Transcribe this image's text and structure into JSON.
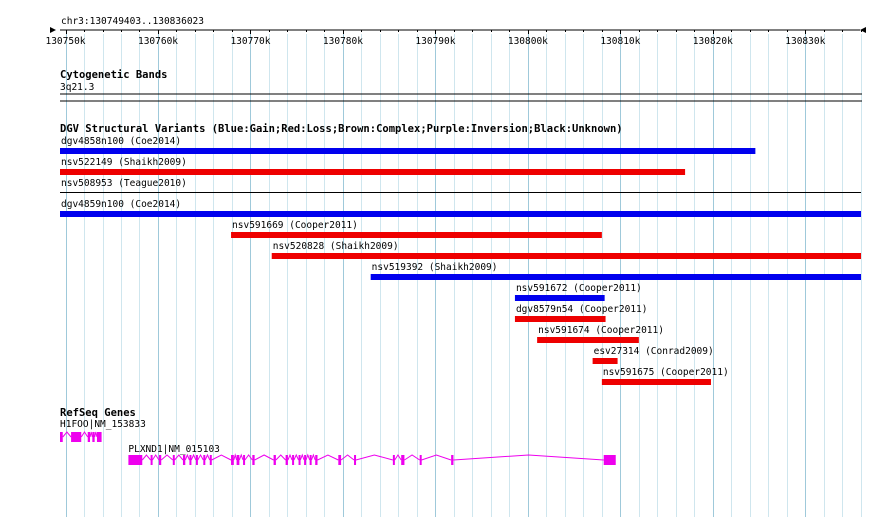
{
  "region": {
    "label": "chr3:130749403..130836023",
    "start": 130749403,
    "end": 130836023
  },
  "ruler": {
    "ticks": [
      {
        "pos": 130750000,
        "label": "130750k"
      },
      {
        "pos": 130760000,
        "label": "130760k"
      },
      {
        "pos": 130770000,
        "label": "130770k"
      },
      {
        "pos": 130780000,
        "label": "130780k"
      },
      {
        "pos": 130790000,
        "label": "130790k"
      },
      {
        "pos": 130800000,
        "label": "130800k"
      },
      {
        "pos": 130810000,
        "label": "130810k"
      },
      {
        "pos": 130820000,
        "label": "130820k"
      },
      {
        "pos": 130830000,
        "label": "130830k"
      }
    ]
  },
  "cytobands": {
    "title": "Cytogenetic Bands",
    "band": "3q21.3"
  },
  "dgv": {
    "title": "DGV Structural Variants (Blue:Gain;Red:Loss;Brown:Complex;Purple:Inversion;Black:Unknown)",
    "colors": {
      "gain": "#0000ee",
      "loss": "#ee0000",
      "unknown": "#000000"
    },
    "variants": [
      {
        "label": "dgv4858n100 (Coe2014)",
        "type": "gain",
        "start": 130749403,
        "end": 130824600
      },
      {
        "label": "nsv522149 (Shaikh2009)",
        "type": "loss",
        "start": 130749403,
        "end": 130817000
      },
      {
        "label": "nsv508953 (Teague2010)",
        "type": "unknown",
        "start": 130749403,
        "end": 130836023
      },
      {
        "label": "dgv4859n100 (Coe2014)",
        "type": "gain",
        "start": 130749403,
        "end": 130836023
      },
      {
        "label": "nsv591669 (Cooper2011)",
        "type": "loss",
        "start": 130767900,
        "end": 130808000
      },
      {
        "label": "nsv520828 (Shaikh2009)",
        "type": "loss",
        "start": 130772300,
        "end": 130836023
      },
      {
        "label": "nsv519392 (Shaikh2009)",
        "type": "gain",
        "start": 130783000,
        "end": 130836023
      },
      {
        "label": "nsv591672 (Cooper2011)",
        "type": "gain",
        "start": 130798600,
        "end": 130808300
      },
      {
        "label": "dgv8579n54 (Cooper2011)",
        "type": "loss",
        "start": 130798600,
        "end": 130808400
      },
      {
        "label": "nsv591674 (Cooper2011)",
        "type": "loss",
        "start": 130801000,
        "end": 130812000
      },
      {
        "label": "esv27314 (Conrad2009)",
        "type": "loss",
        "start": 130807000,
        "end": 130809700
      },
      {
        "label": "nsv591675 (Cooper2011)",
        "type": "loss",
        "start": 130808000,
        "end": 130819800
      }
    ]
  },
  "refseq": {
    "title": "RefSeq Genes",
    "color": "#ee00ee",
    "genes": [
      {
        "label": "H1FOO|NM_153833",
        "start": 130749403,
        "end": 130753900,
        "exons": [
          [
            130749403,
            130749700
          ],
          [
            130750600,
            130751700
          ],
          [
            130752400,
            130752650
          ],
          [
            130752900,
            130753150
          ],
          [
            130753400,
            130753900
          ]
        ]
      },
      {
        "label": "PLXND1|NM_015103",
        "start": 130756800,
        "end": 130809500,
        "exons": [
          [
            130756800,
            130758300
          ],
          [
            130759200,
            130759400
          ],
          [
            130760100,
            130760350
          ],
          [
            130761600,
            130761800
          ],
          [
            130762700,
            130762950
          ],
          [
            130763400,
            130763600
          ],
          [
            130764100,
            130764300
          ],
          [
            130764900,
            130765100
          ],
          [
            130765600,
            130765800
          ],
          [
            130767900,
            130768200
          ],
          [
            130768500,
            130768800
          ],
          [
            130769200,
            130769400
          ],
          [
            130770200,
            130770450
          ],
          [
            130772500,
            130772750
          ],
          [
            130773800,
            130774050
          ],
          [
            130774500,
            130774700
          ],
          [
            130775200,
            130775400
          ],
          [
            130775800,
            130776000
          ],
          [
            130776400,
            130776600
          ],
          [
            130777000,
            130777250
          ],
          [
            130779500,
            130779800
          ],
          [
            130781200,
            130781400
          ],
          [
            130785400,
            130785600
          ],
          [
            130786300,
            130786650
          ],
          [
            130788300,
            130788500
          ],
          [
            130791700,
            130791950
          ],
          [
            130808200,
            130809500
          ]
        ]
      }
    ]
  }
}
